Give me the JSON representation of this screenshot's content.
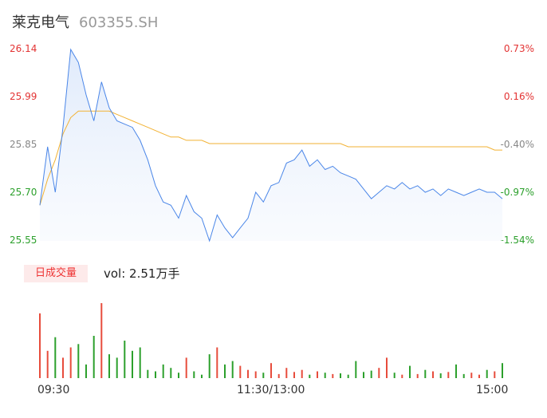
{
  "header": {
    "name": "莱克电气",
    "code": "603355.SH"
  },
  "y_axis": {
    "price_labels": [
      "26.14",
      "25.99",
      "25.85",
      "25.70",
      "25.55"
    ],
    "pct_labels": [
      "0.73%",
      "0.16%",
      "-0.40%",
      "-0.97%",
      "-1.54%"
    ]
  },
  "volume": {
    "tag": "日成交量",
    "summary": "vol: 2.51万手"
  },
  "x_axis": {
    "labels": [
      "09:30",
      "11:30/13:00",
      "15:00"
    ]
  },
  "colors": {
    "price": "#4a86e8",
    "avg": "#f2b233",
    "up": "#e74c3c",
    "down": "#2ca02c",
    "red_label": "#e33333",
    "green_label": "#2ca02c",
    "neutral": "#888888"
  },
  "chart_data": {
    "type": "line",
    "ylim": [
      25.55,
      26.14
    ],
    "price": [
      25.66,
      25.84,
      25.7,
      25.9,
      26.14,
      26.1,
      26.0,
      25.92,
      26.04,
      25.96,
      25.92,
      25.91,
      25.9,
      25.86,
      25.8,
      25.72,
      25.67,
      25.66,
      25.62,
      25.69,
      25.64,
      25.62,
      25.55,
      25.63,
      25.59,
      25.56,
      25.59,
      25.62,
      25.7,
      25.67,
      25.72,
      25.73,
      25.79,
      25.8,
      25.83,
      25.78,
      25.8,
      25.77,
      25.78,
      25.76,
      25.75,
      25.74,
      25.71,
      25.68,
      25.7,
      25.72,
      25.71,
      25.73,
      25.71,
      25.72,
      25.7,
      25.71,
      25.69,
      25.71,
      25.7,
      25.69,
      25.7,
      25.71,
      25.7,
      25.7,
      25.68
    ],
    "avg": [
      25.66,
      25.74,
      25.8,
      25.88,
      25.93,
      25.95,
      25.95,
      25.95,
      25.95,
      25.95,
      25.94,
      25.93,
      25.92,
      25.91,
      25.9,
      25.89,
      25.88,
      25.87,
      25.87,
      25.86,
      25.86,
      25.86,
      25.85,
      25.85,
      25.85,
      25.85,
      25.85,
      25.85,
      25.85,
      25.85,
      25.85,
      25.85,
      25.85,
      25.85,
      25.85,
      25.85,
      25.85,
      25.85,
      25.85,
      25.85,
      25.84,
      25.84,
      25.84,
      25.84,
      25.84,
      25.84,
      25.84,
      25.84,
      25.84,
      25.84,
      25.84,
      25.84,
      25.84,
      25.84,
      25.84,
      25.84,
      25.84,
      25.84,
      25.84,
      25.83,
      25.83
    ],
    "volume": [
      95,
      40,
      60,
      30,
      45,
      50,
      20,
      62,
      110,
      35,
      30,
      55,
      40,
      45,
      12,
      10,
      20,
      15,
      8,
      30,
      10,
      5,
      35,
      45,
      20,
      25,
      18,
      12,
      10,
      8,
      22,
      6,
      15,
      9,
      12,
      5,
      10,
      8,
      6,
      7,
      5,
      25,
      9,
      11,
      15,
      30,
      8,
      5,
      18,
      6,
      12,
      10,
      7,
      9,
      20,
      6,
      8,
      5,
      12,
      10,
      22
    ]
  }
}
